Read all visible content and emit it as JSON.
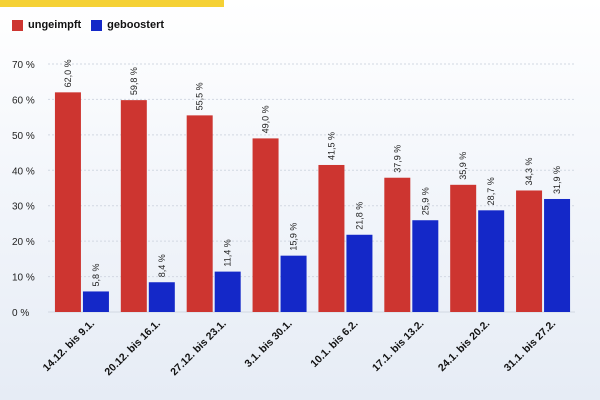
{
  "chart_data": {
    "type": "bar",
    "categories": [
      "14.12. bis 9.1.",
      "20.12. bis 16.1.",
      "27.12. bis 23.1.",
      "3.1. bis 30.1.",
      "10.1. bis 6.2.",
      "17.1. bis 13.2.",
      "24.1. bis 20.2.",
      "31.1. bis 27.2."
    ],
    "series": [
      {
        "name": "ungeimpft",
        "color": "#cd3530",
        "values": [
          62.0,
          59.8,
          55.5,
          49.0,
          41.5,
          37.9,
          35.9,
          34.3
        ],
        "labels": [
          "62,0 %",
          "59,8 %",
          "55,5 %",
          "49,0 %",
          "41,5 %",
          "37,9 %",
          "35,9 %",
          "34,3 %"
        ]
      },
      {
        "name": "geboostert",
        "color": "#1428c8",
        "values": [
          5.8,
          8.4,
          11.4,
          15.9,
          21.8,
          25.9,
          28.7,
          31.9
        ],
        "labels": [
          "5,8 %",
          "8,4 %",
          "11,4 %",
          "15,9 %",
          "21,8 %",
          "25,9 %",
          "28,7 %",
          "31,9 %"
        ]
      }
    ],
    "yticks": [
      0,
      10,
      20,
      30,
      40,
      50,
      60,
      70
    ],
    "ytick_labels": [
      "0 %",
      "10 %",
      "20 %",
      "30 %",
      "40 %",
      "50 %",
      "60 %",
      "70 %"
    ],
    "ylim": [
      0,
      70
    ],
    "grid": true,
    "legend": "top-left",
    "title": "",
    "xlabel": "",
    "ylabel": ""
  },
  "colors": {
    "accent_bar": "#f5d135"
  }
}
